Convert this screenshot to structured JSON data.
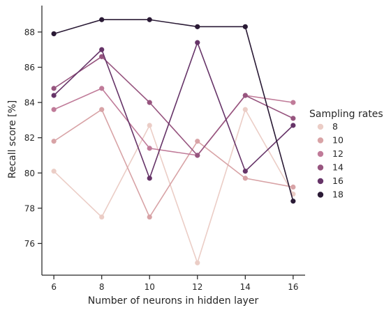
{
  "chart_data": {
    "type": "line",
    "xlabel": "Number of neurons in hidden layer",
    "ylabel": "Recall score [%]",
    "x": [
      6,
      8,
      10,
      12,
      14,
      16
    ],
    "xlim": [
      5.5,
      16.5
    ],
    "ylim": [
      74.2,
      89.5
    ],
    "yticks": [
      76,
      78,
      80,
      82,
      84,
      86,
      88
    ],
    "grid": false,
    "legend": {
      "title": "Sampling rates",
      "placement": "right"
    },
    "series": [
      {
        "name": "8",
        "color": "#ebcdc6",
        "values": [
          80.1,
          77.5,
          82.7,
          74.9,
          83.6,
          78.8
        ]
      },
      {
        "name": "10",
        "color": "#d8a3a6",
        "values": [
          81.8,
          83.6,
          77.5,
          81.8,
          79.7,
          79.2
        ]
      },
      {
        "name": "12",
        "color": "#c07b99",
        "values": [
          83.6,
          84.8,
          81.4,
          81.0,
          84.4,
          84.0
        ]
      },
      {
        "name": "14",
        "color": "#97557f",
        "values": [
          84.8,
          86.6,
          84.0,
          81.0,
          84.4,
          83.1
        ]
      },
      {
        "name": "16",
        "color": "#663468",
        "values": [
          84.4,
          87.0,
          79.7,
          87.4,
          80.1,
          82.7
        ]
      },
      {
        "name": "18",
        "color": "#2a1a35",
        "values": [
          87.9,
          88.7,
          88.7,
          88.3,
          88.3,
          78.4
        ]
      }
    ]
  }
}
